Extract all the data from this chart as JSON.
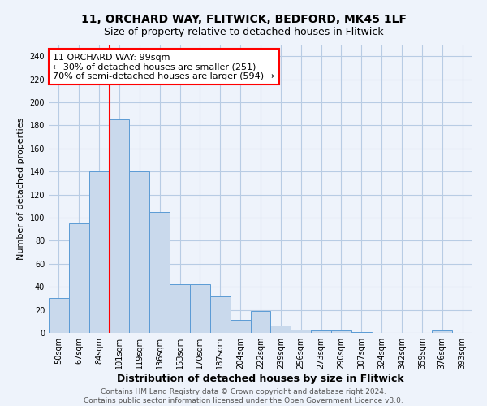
{
  "title": "11, ORCHARD WAY, FLITWICK, BEDFORD, MK45 1LF",
  "subtitle": "Size of property relative to detached houses in Flitwick",
  "xlabel": "Distribution of detached houses by size in Flitwick",
  "ylabel": "Number of detached properties",
  "bar_labels": [
    "50sqm",
    "67sqm",
    "84sqm",
    "101sqm",
    "119sqm",
    "136sqm",
    "153sqm",
    "170sqm",
    "187sqm",
    "204sqm",
    "222sqm",
    "239sqm",
    "256sqm",
    "273sqm",
    "290sqm",
    "307sqm",
    "324sqm",
    "342sqm",
    "359sqm",
    "376sqm",
    "393sqm"
  ],
  "bar_values": [
    30,
    95,
    140,
    185,
    140,
    105,
    42,
    42,
    32,
    11,
    19,
    6,
    3,
    2,
    2,
    1,
    0,
    0,
    0,
    2,
    0
  ],
  "bar_color": "#c9d9ec",
  "bar_edge_color": "#5b9bd5",
  "vline_x_label": "101sqm",
  "vline_color": "red",
  "annotation_text": "11 ORCHARD WAY: 99sqm\n← 30% of detached houses are smaller (251)\n70% of semi-detached houses are larger (594) →",
  "annotation_box_color": "white",
  "annotation_edge_color": "red",
  "ylim": [
    0,
    250
  ],
  "yticks": [
    0,
    20,
    40,
    60,
    80,
    100,
    120,
    140,
    160,
    180,
    200,
    220,
    240
  ],
  "grid_color": "#b8cce4",
  "background_color": "#eef3fb",
  "footer_text": "Contains HM Land Registry data © Crown copyright and database right 2024.\nContains public sector information licensed under the Open Government Licence v3.0.",
  "title_fontsize": 10,
  "subtitle_fontsize": 9,
  "xlabel_fontsize": 9,
  "ylabel_fontsize": 8,
  "tick_fontsize": 7,
  "annotation_fontsize": 8,
  "footer_fontsize": 6.5
}
